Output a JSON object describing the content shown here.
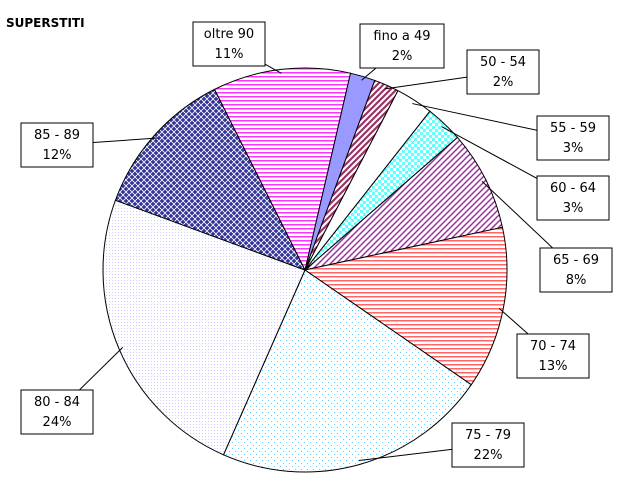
{
  "chart_data": {
    "type": "pie",
    "title": "SUPERSTITI",
    "categories": [
      "fino a 49",
      "50 - 54",
      "55 - 59",
      "60 - 64",
      "65 - 69",
      "70 - 74",
      "75 - 79",
      "80 - 84",
      "85 - 89",
      "oltre 90"
    ],
    "values": [
      2,
      2,
      3,
      3,
      8,
      13,
      22,
      24,
      12,
      11
    ],
    "value_labels": [
      "2%",
      "2%",
      "3%",
      "3%",
      "8%",
      "13%",
      "22%",
      "24%",
      "12%",
      "11%"
    ],
    "colors": [
      "#9999ff",
      "#993366",
      "#ffffff",
      "#66ffff",
      "#993399",
      "#ff6666",
      "#66ccff",
      "#ccccff",
      "#333399",
      "#ff33ff"
    ]
  }
}
